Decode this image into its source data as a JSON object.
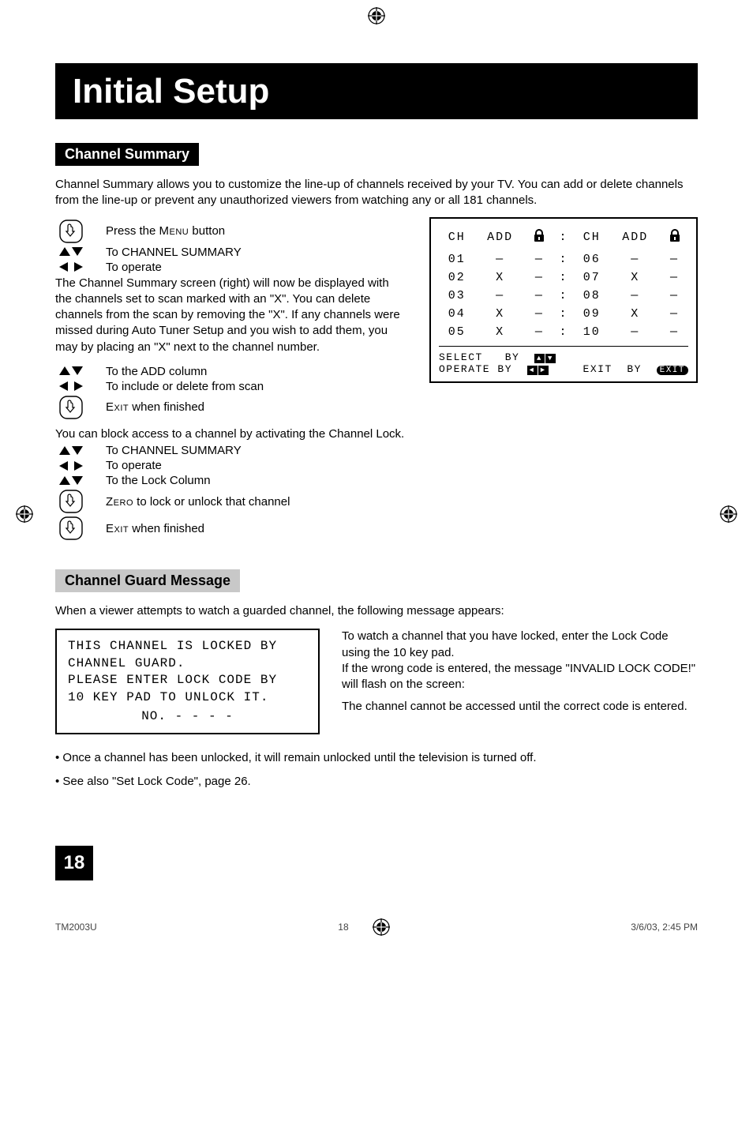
{
  "page": {
    "title": "Initial Setup",
    "section1_label": "Channel Summary",
    "intro": "Channel Summary allows you to customize the line-up of channels received by your TV. You can add or delete channels from the line-up or prevent any unauthorized viewers from watching any or all 181 channels.",
    "instr1_a": "Press the ",
    "instr1_btn": "Menu",
    "instr1_b": " button",
    "instr2": "To CHANNEL SUMMARY",
    "instr3": "To operate",
    "para1": "The Channel Summary screen (right) will now be displayed with the channels set to scan marked with an \"X\". You can delete channels from the scan by removing the \"X\". If any channels were missed during Auto Tuner Setup and you wish to add them, you may by placing an \"X\" next to the channel number.",
    "instr4": "To the ADD column",
    "instr5": "To include or delete from scan",
    "instr6_btn": "Exit",
    "instr6_b": " when finished",
    "para2": "You can block access to a channel by activating the Channel Lock.",
    "instr7": "To CHANNEL SUMMARY",
    "instr8": "To operate",
    "instr9": "To the Lock Column",
    "instr10_btn": "Zero",
    "instr10_b": " to lock or unlock that channel",
    "instr11_btn": "Exit",
    "instr11_b": " when finished",
    "section2_label": "Channel Guard Message",
    "guard_intro": "When a viewer attempts to watch a guarded channel, the following message appears:",
    "guard_box_l1": "THIS CHANNEL IS LOCKED BY",
    "guard_box_l2": "CHANNEL GUARD.",
    "guard_box_l3": "PLEASE ENTER LOCK CODE BY",
    "guard_box_l4": "10 KEY PAD TO UNLOCK IT.",
    "guard_box_no": "NO. - - - -",
    "guard_r1": "To watch a channel that you have locked, enter the Lock Code using the 10 key pad.",
    "guard_r2": "If the wrong code is entered, the message \"INVALID LOCK CODE!\" will flash on the screen:",
    "guard_r3": "The channel cannot be accessed until the correct code is entered.",
    "bullet1": "• Once a channel has been unlocked, it will remain unlocked until the television is turned off.",
    "bullet2": "• See also \"Set Lock Code\", page 26.",
    "page_num": "18"
  },
  "osd": {
    "col_ch": "CH",
    "col_add": "ADD",
    "rows_left": [
      {
        "ch": "01",
        "add": "—",
        "lock": "—"
      },
      {
        "ch": "02",
        "add": "X",
        "lock": "—"
      },
      {
        "ch": "03",
        "add": "—",
        "lock": "—"
      },
      {
        "ch": "04",
        "add": "X",
        "lock": "—"
      },
      {
        "ch": "05",
        "add": "X",
        "lock": "—"
      }
    ],
    "rows_right": [
      {
        "ch": "06",
        "add": "—",
        "lock": "—"
      },
      {
        "ch": "07",
        "add": "X",
        "lock": "—"
      },
      {
        "ch": "08",
        "add": "—",
        "lock": "—"
      },
      {
        "ch": "09",
        "add": "X",
        "lock": "—"
      },
      {
        "ch": "10",
        "add": "—",
        "lock": "—"
      }
    ],
    "sel_label": "SELECT",
    "sel_by": "BY",
    "op_label": "OPERATE BY",
    "exit_label": "EXIT",
    "exit_by": "BY",
    "exit_tag": "EXIT"
  },
  "footer": {
    "left": "TM2003U",
    "mid": "18",
    "right": "3/6/03, 2:45 PM"
  },
  "style": {
    "bg": "#ffffff",
    "title_bg": "#000000",
    "title_fg": "#ffffff",
    "gray_bg": "#c8c8c8",
    "osd_font": "Courier New"
  }
}
